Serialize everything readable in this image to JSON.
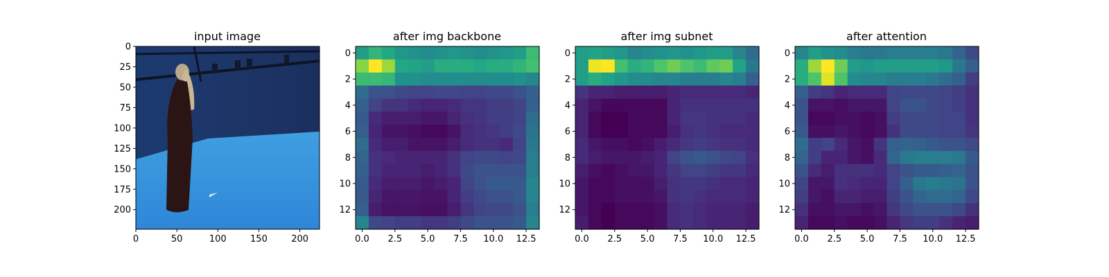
{
  "figure": {
    "background": "#ffffff",
    "colormap": "viridis"
  },
  "chart_data": [
    {
      "type": "image",
      "title": "input image",
      "xlim": [
        0,
        224
      ],
      "ylim": [
        0,
        224
      ],
      "y_inverted": true,
      "xticks": [
        0,
        50,
        100,
        150,
        200
      ],
      "yticks": [
        0,
        25,
        50,
        75,
        100,
        125,
        150,
        175,
        200
      ],
      "xtick_labels": [
        "0",
        "50",
        "100",
        "150",
        "200"
      ],
      "ytick_labels": [
        "0",
        "25",
        "50",
        "75",
        "100",
        "125",
        "150",
        "175",
        "200"
      ],
      "scene": {
        "description": "person in long dark dress standing in blue studio",
        "colors": {
          "wall": "#1b3566",
          "floor": "#3aa6e6",
          "rig": "#0d1424",
          "figure": "#2a1414",
          "hair": "#b9a889"
        }
      }
    },
    {
      "type": "heatmap",
      "title": "after img backbone",
      "colormap": "viridis",
      "xlim": [
        -0.5,
        13.5
      ],
      "ylim": [
        -0.5,
        13.5
      ],
      "y_inverted": true,
      "xticks": [
        0,
        2.5,
        5,
        7.5,
        10,
        12.5
      ],
      "yticks": [
        0,
        2,
        4,
        6,
        8,
        10,
        12
      ],
      "xtick_labels": [
        "0.0",
        "2.5",
        "5.0",
        "7.5",
        "10.0",
        "12.5"
      ],
      "ytick_labels": [
        "0",
        "2",
        "4",
        "6",
        "8",
        "10",
        "12"
      ],
      "values": [
        [
          0.55,
          0.65,
          0.6,
          0.52,
          0.5,
          0.48,
          0.5,
          0.52,
          0.5,
          0.48,
          0.5,
          0.52,
          0.55,
          0.68
        ],
        [
          0.82,
          1.0,
          0.85,
          0.6,
          0.58,
          0.55,
          0.62,
          0.62,
          0.62,
          0.6,
          0.62,
          0.62,
          0.65,
          0.7
        ],
        [
          0.68,
          0.68,
          0.66,
          0.5,
          0.5,
          0.48,
          0.48,
          0.48,
          0.48,
          0.48,
          0.48,
          0.48,
          0.5,
          0.45
        ],
        [
          0.35,
          0.25,
          0.25,
          0.22,
          0.2,
          0.2,
          0.22,
          0.22,
          0.2,
          0.2,
          0.22,
          0.22,
          0.25,
          0.3
        ],
        [
          0.3,
          0.2,
          0.15,
          0.15,
          0.12,
          0.1,
          0.1,
          0.12,
          0.15,
          0.15,
          0.18,
          0.18,
          0.2,
          0.3
        ],
        [
          0.28,
          0.12,
          0.08,
          0.08,
          0.08,
          0.06,
          0.06,
          0.1,
          0.14,
          0.15,
          0.18,
          0.18,
          0.2,
          0.35
        ],
        [
          0.3,
          0.1,
          0.05,
          0.05,
          0.04,
          0.02,
          0.02,
          0.05,
          0.12,
          0.14,
          0.16,
          0.18,
          0.22,
          0.38
        ],
        [
          0.35,
          0.12,
          0.08,
          0.08,
          0.05,
          0.05,
          0.05,
          0.08,
          0.12,
          0.14,
          0.14,
          0.12,
          0.2,
          0.4
        ],
        [
          0.32,
          0.14,
          0.12,
          0.1,
          0.1,
          0.1,
          0.1,
          0.14,
          0.2,
          0.22,
          0.22,
          0.2,
          0.22,
          0.42
        ],
        [
          0.3,
          0.14,
          0.1,
          0.1,
          0.1,
          0.08,
          0.1,
          0.14,
          0.22,
          0.25,
          0.25,
          0.25,
          0.25,
          0.42
        ],
        [
          0.28,
          0.12,
          0.08,
          0.08,
          0.08,
          0.06,
          0.08,
          0.1,
          0.2,
          0.25,
          0.28,
          0.28,
          0.28,
          0.45
        ],
        [
          0.28,
          0.1,
          0.06,
          0.06,
          0.06,
          0.05,
          0.05,
          0.1,
          0.18,
          0.22,
          0.25,
          0.25,
          0.28,
          0.45
        ],
        [
          0.3,
          0.08,
          0.05,
          0.05,
          0.05,
          0.04,
          0.04,
          0.08,
          0.15,
          0.2,
          0.22,
          0.22,
          0.25,
          0.42
        ],
        [
          0.45,
          0.22,
          0.2,
          0.18,
          0.18,
          0.16,
          0.16,
          0.18,
          0.22,
          0.25,
          0.25,
          0.25,
          0.28,
          0.45
        ]
      ]
    },
    {
      "type": "heatmap",
      "title": "after img subnet",
      "colormap": "viridis",
      "xlim": [
        -0.5,
        13.5
      ],
      "ylim": [
        -0.5,
        13.5
      ],
      "y_inverted": true,
      "xticks": [
        0,
        2.5,
        5,
        7.5,
        10,
        12.5
      ],
      "yticks": [
        0,
        2,
        4,
        6,
        8,
        10,
        12
      ],
      "xtick_labels": [
        "0.0",
        "2.5",
        "5.0",
        "7.5",
        "10.0",
        "12.5"
      ],
      "ytick_labels": [
        "0",
        "2",
        "4",
        "6",
        "8",
        "10",
        "12"
      ],
      "values": [
        [
          0.55,
          0.58,
          0.55,
          0.52,
          0.45,
          0.48,
          0.5,
          0.52,
          0.5,
          0.52,
          0.55,
          0.55,
          0.45,
          0.35
        ],
        [
          0.55,
          0.98,
          1.0,
          0.7,
          0.62,
          0.65,
          0.72,
          0.78,
          0.72,
          0.68,
          0.75,
          0.78,
          0.58,
          0.4
        ],
        [
          0.55,
          0.62,
          0.58,
          0.52,
          0.48,
          0.48,
          0.45,
          0.45,
          0.42,
          0.42,
          0.42,
          0.45,
          0.42,
          0.3
        ],
        [
          0.15,
          0.1,
          0.1,
          0.08,
          0.08,
          0.08,
          0.08,
          0.1,
          0.12,
          0.12,
          0.12,
          0.12,
          0.12,
          0.1
        ],
        [
          0.1,
          0.05,
          0.02,
          0.02,
          0.02,
          0.02,
          0.02,
          0.1,
          0.14,
          0.14,
          0.14,
          0.14,
          0.14,
          0.14
        ],
        [
          0.1,
          0.02,
          0.0,
          0.0,
          0.02,
          0.02,
          0.02,
          0.1,
          0.16,
          0.16,
          0.14,
          0.14,
          0.14,
          0.12
        ],
        [
          0.1,
          0.02,
          0.0,
          0.0,
          0.02,
          0.02,
          0.02,
          0.08,
          0.14,
          0.16,
          0.14,
          0.12,
          0.12,
          0.12
        ],
        [
          0.12,
          0.06,
          0.04,
          0.04,
          0.02,
          0.04,
          0.08,
          0.12,
          0.16,
          0.18,
          0.16,
          0.14,
          0.14,
          0.12
        ],
        [
          0.12,
          0.08,
          0.06,
          0.06,
          0.06,
          0.08,
          0.1,
          0.2,
          0.25,
          0.28,
          0.25,
          0.22,
          0.2,
          0.14
        ],
        [
          0.08,
          0.04,
          0.02,
          0.04,
          0.06,
          0.06,
          0.1,
          0.16,
          0.2,
          0.2,
          0.18,
          0.16,
          0.16,
          0.12
        ],
        [
          0.06,
          0.02,
          0.02,
          0.04,
          0.04,
          0.04,
          0.08,
          0.14,
          0.16,
          0.16,
          0.14,
          0.12,
          0.12,
          0.1
        ],
        [
          0.06,
          0.02,
          0.02,
          0.04,
          0.04,
          0.04,
          0.06,
          0.14,
          0.16,
          0.14,
          0.12,
          0.12,
          0.12,
          0.1
        ],
        [
          0.06,
          0.02,
          0.0,
          0.02,
          0.02,
          0.02,
          0.04,
          0.12,
          0.14,
          0.12,
          0.1,
          0.1,
          0.1,
          0.08
        ],
        [
          0.08,
          0.02,
          0.0,
          0.02,
          0.02,
          0.02,
          0.04,
          0.12,
          0.14,
          0.12,
          0.1,
          0.1,
          0.1,
          0.08
        ]
      ]
    },
    {
      "type": "heatmap",
      "title": "after attention",
      "colormap": "viridis",
      "xlim": [
        -0.5,
        13.5
      ],
      "ylim": [
        -0.5,
        13.5
      ],
      "y_inverted": true,
      "xticks": [
        0,
        2.5,
        5,
        7.5,
        10,
        12.5
      ],
      "yticks": [
        0,
        2,
        4,
        6,
        8,
        10,
        12
      ],
      "xtick_labels": [
        "0.0",
        "2.5",
        "5.0",
        "7.5",
        "10.0",
        "12.5"
      ],
      "ytick_labels": [
        "0",
        "2",
        "4",
        "6",
        "8",
        "10",
        "12"
      ],
      "values": [
        [
          0.45,
          0.55,
          0.5,
          0.48,
          0.42,
          0.4,
          0.4,
          0.42,
          0.42,
          0.42,
          0.42,
          0.4,
          0.32,
          0.22
        ],
        [
          0.62,
          0.85,
          1.0,
          0.78,
          0.55,
          0.52,
          0.55,
          0.55,
          0.55,
          0.55,
          0.55,
          0.52,
          0.4,
          0.3
        ],
        [
          0.62,
          0.72,
          0.95,
          0.72,
          0.48,
          0.45,
          0.45,
          0.42,
          0.42,
          0.42,
          0.4,
          0.35,
          0.3,
          0.18
        ],
        [
          0.3,
          0.18,
          0.15,
          0.1,
          0.12,
          0.12,
          0.12,
          0.2,
          0.22,
          0.22,
          0.22,
          0.2,
          0.18,
          0.14
        ],
        [
          0.25,
          0.05,
          0.05,
          0.04,
          0.06,
          0.06,
          0.06,
          0.2,
          0.25,
          0.25,
          0.22,
          0.2,
          0.18,
          0.14
        ],
        [
          0.25,
          0.02,
          0.02,
          0.04,
          0.04,
          0.02,
          0.04,
          0.18,
          0.22,
          0.22,
          0.22,
          0.2,
          0.2,
          0.14
        ],
        [
          0.28,
          0.04,
          0.04,
          0.06,
          0.04,
          0.02,
          0.04,
          0.14,
          0.22,
          0.22,
          0.22,
          0.2,
          0.2,
          0.16
        ],
        [
          0.35,
          0.18,
          0.2,
          0.12,
          0.06,
          0.04,
          0.15,
          0.3,
          0.32,
          0.3,
          0.28,
          0.25,
          0.25,
          0.22
        ],
        [
          0.32,
          0.18,
          0.1,
          0.1,
          0.06,
          0.04,
          0.12,
          0.32,
          0.4,
          0.42,
          0.42,
          0.42,
          0.4,
          0.28
        ],
        [
          0.25,
          0.12,
          0.08,
          0.14,
          0.14,
          0.14,
          0.12,
          0.2,
          0.25,
          0.28,
          0.28,
          0.3,
          0.32,
          0.25
        ],
        [
          0.2,
          0.06,
          0.06,
          0.14,
          0.12,
          0.1,
          0.1,
          0.2,
          0.3,
          0.4,
          0.42,
          0.4,
          0.38,
          0.25
        ],
        [
          0.18,
          0.06,
          0.04,
          0.1,
          0.1,
          0.08,
          0.08,
          0.18,
          0.26,
          0.32,
          0.35,
          0.35,
          0.32,
          0.22
        ],
        [
          0.14,
          0.04,
          0.04,
          0.06,
          0.06,
          0.04,
          0.06,
          0.16,
          0.22,
          0.25,
          0.25,
          0.25,
          0.22,
          0.14
        ],
        [
          0.1,
          0.02,
          0.02,
          0.04,
          0.02,
          0.02,
          0.04,
          0.1,
          0.16,
          0.18,
          0.18,
          0.14,
          0.1,
          0.08
        ]
      ]
    }
  ]
}
